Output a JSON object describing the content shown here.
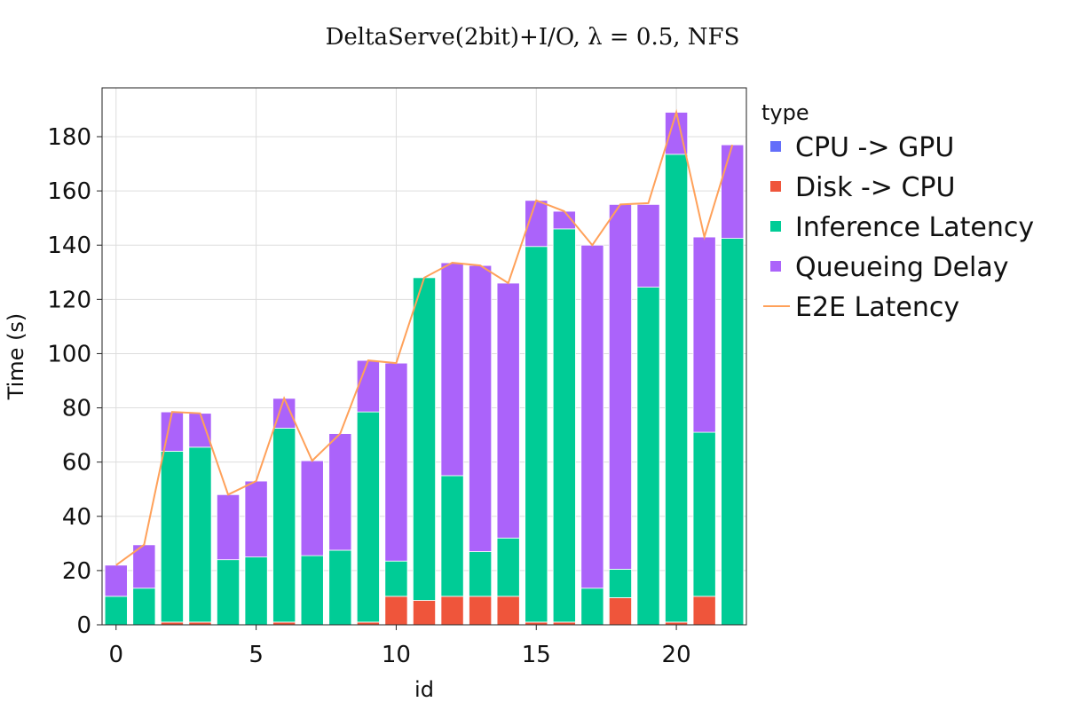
{
  "chart_data": {
    "type": "bar",
    "stacked": true,
    "title": "DeltaServe(2bit)+I/O, λ = 0.5, NFS",
    "xlabel": "id",
    "ylabel": "Time (s)",
    "xlim": [
      -0.5,
      22.5
    ],
    "ylim": [
      0,
      198
    ],
    "x_ticks": [
      0,
      5,
      10,
      15,
      20
    ],
    "y_ticks": [
      0,
      20,
      40,
      60,
      80,
      100,
      120,
      140,
      160,
      180
    ],
    "grid": true,
    "legend_title": "type",
    "legend_position": "right",
    "x": [
      0,
      1,
      2,
      3,
      4,
      5,
      6,
      7,
      8,
      9,
      10,
      11,
      12,
      13,
      14,
      15,
      16,
      17,
      18,
      19,
      20,
      21,
      22
    ],
    "series": [
      {
        "name": "CPU -> GPU",
        "color": "#636efa",
        "values": [
          0,
          0,
          0,
          0,
          0,
          0,
          0,
          0,
          0,
          0,
          0,
          0,
          0,
          0,
          0,
          0,
          0,
          0,
          0,
          0,
          0,
          0,
          0
        ]
      },
      {
        "name": "Disk -> CPU",
        "color": "#ef553b",
        "values": [
          0,
          0,
          1,
          1,
          0,
          0,
          1,
          0,
          0,
          1,
          10.5,
          9,
          10.5,
          10.5,
          10.5,
          1,
          1,
          0,
          10,
          0,
          1,
          10.5,
          0
        ]
      },
      {
        "name": "Inference Latency",
        "color": "#00cc96",
        "values": [
          10.5,
          13.5,
          63,
          64.5,
          24,
          25,
          71.5,
          25.5,
          27.5,
          77.5,
          13,
          119,
          44.5,
          16.5,
          21.5,
          138.5,
          145,
          13.5,
          10.5,
          124.5,
          172.5,
          60.5,
          142.5
        ]
      },
      {
        "name": "Queueing Delay",
        "color": "#ab63fa",
        "values": [
          11.5,
          16,
          14.5,
          12.5,
          24,
          28,
          11,
          35,
          43,
          19,
          73,
          0,
          78.5,
          105.5,
          94,
          17,
          6.5,
          126.5,
          134.5,
          30.5,
          15.5,
          72,
          34.5
        ]
      }
    ],
    "line_series": {
      "name": "E2E Latency",
      "color": "#ffa15a",
      "values": [
        22,
        29.5,
        78.5,
        78,
        48,
        53,
        83.5,
        60.5,
        70.5,
        97.5,
        96.5,
        128,
        133.5,
        132.5,
        126,
        156.5,
        152.5,
        140,
        155,
        155.5,
        189,
        143,
        177
      ]
    }
  }
}
